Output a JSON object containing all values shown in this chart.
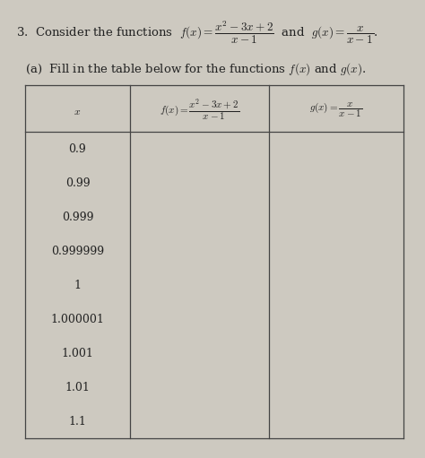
{
  "bg_color": "#cdc9c0",
  "x_values": [
    "0.9",
    "0.99",
    "0.999",
    "0.999999",
    "1",
    "1.000001",
    "1.001",
    "1.01",
    "1.1"
  ],
  "font_size_title": 9.5,
  "font_size_body": 9.5,
  "font_size_table_hdr": 8.5,
  "font_size_table_row": 9.0,
  "font_color": "#222222",
  "line_color": "#444444"
}
